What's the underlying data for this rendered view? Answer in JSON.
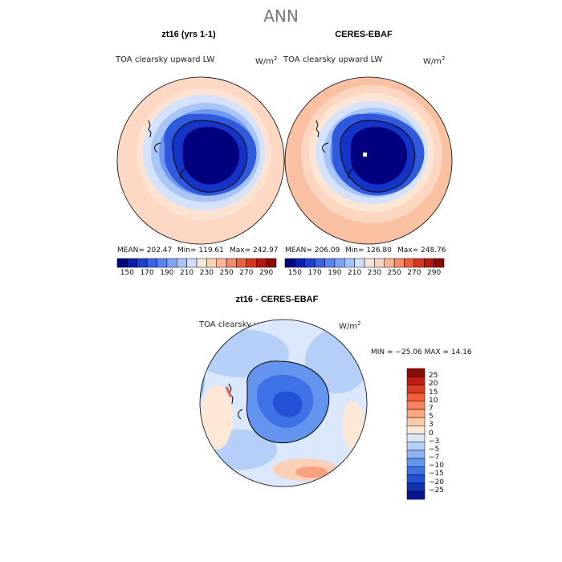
{
  "title": "ANN",
  "panels": [
    {
      "title": "zt16 (yrs 1-1)",
      "left_label": "TOA clearsky upward LW",
      "units": "W/m",
      "units_exp": "2",
      "mean_label": "MEAN= 202.47",
      "min_label": "Min= 119.61",
      "max_label": "Max= 242.97"
    },
    {
      "title": "CERES-EBAF",
      "left_label": "TOA clearsky upward LW",
      "units": "W/m",
      "units_exp": "2",
      "mean_label": "MEAN= 206.09",
      "min_label": "Min= 126.80",
      "max_label": "Max= 248.76"
    }
  ],
  "abs_colorbar": {
    "colors": [
      "#00007f",
      "#0a1fb0",
      "#1c3fd4",
      "#3a63e6",
      "#5a84ee",
      "#7fa3f2",
      "#a8c3f7",
      "#d1e1fb",
      "#f5e6da",
      "#fcd2bc",
      "#fab49a",
      "#f28c6c",
      "#e8603f",
      "#d83621",
      "#b51a10",
      "#8a0a08"
    ],
    "tick_labels": [
      "150",
      "170",
      "190",
      "210",
      "230",
      "250",
      "270",
      "290"
    ]
  },
  "diff_panel": {
    "title": "zt16 - CERES-EBAF",
    "left_label": "TOA clearsky upward LW",
    "units": "W/m",
    "units_exp": "2",
    "minmax_label": "MIN = −25.06  MAX =  14.16"
  },
  "diff_colorbar": {
    "colors": [
      "#8a0a08",
      "#c01d12",
      "#e33a22",
      "#f25c3b",
      "#f8805c",
      "#fba682",
      "#fdcaaa",
      "#fde8d8",
      "#dbe8fb",
      "#b6cff8",
      "#8cb2f3",
      "#6494ee",
      "#3f72e6",
      "#2452d6",
      "#1432b4",
      "#05168f"
    ],
    "tick_labels": [
      "25",
      "20",
      "15",
      "10",
      "7",
      "5",
      "3",
      "0",
      "−3",
      "−5",
      "−7",
      "−10",
      "−15",
      "−20",
      "−25"
    ]
  }
}
